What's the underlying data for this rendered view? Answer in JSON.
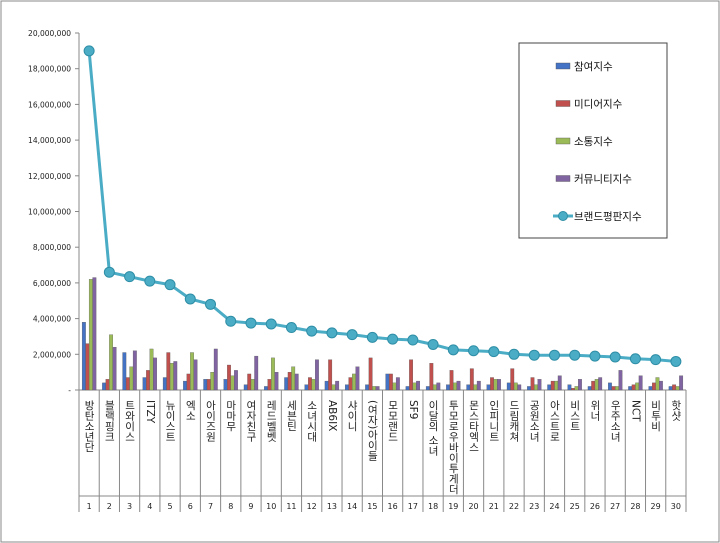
{
  "chart_data": {
    "type": "bar+line",
    "title": "",
    "xlabel": "",
    "ylabel": "",
    "ylim": [
      0,
      20000000
    ],
    "yticks": [
      "-",
      "2,000,000",
      "4,000,000",
      "6,000,000",
      "8,000,000",
      "10,000,000",
      "12,000,000",
      "14,000,000",
      "16,000,000",
      "18,000,000",
      "20,000,000"
    ],
    "categories": [
      "방탄소년단",
      "블랙핑크",
      "트와이스",
      "ITZY",
      "뉴이스트",
      "엑소",
      "아이즈원",
      "마마무",
      "여자친구",
      "레드벨벳",
      "세븐틴",
      "소녀시대",
      "AB6IX",
      "샤이니",
      "(여자)아이들",
      "모모랜드",
      "SF9",
      "이달의 소녀",
      "투모로우바이투게더",
      "몬스타엑스",
      "인피니트",
      "드림캐쳐",
      "공원소녀",
      "아스트로",
      "비스트",
      "위너",
      "우주소녀",
      "NCT",
      "비투비",
      "핫샷"
    ],
    "ranks": [
      "1",
      "2",
      "3",
      "4",
      "5",
      "6",
      "7",
      "8",
      "9",
      "10",
      "11",
      "12",
      "13",
      "14",
      "15",
      "16",
      "17",
      "18",
      "19",
      "20",
      "21",
      "22",
      "23",
      "24",
      "25",
      "26",
      "27",
      "28",
      "29",
      "30"
    ],
    "grid": false,
    "legend_position": "top-right",
    "series": [
      {
        "name": "참여지수",
        "kind": "bar",
        "color": "#4472c4",
        "values": [
          3800000,
          400000,
          2100000,
          700000,
          700000,
          500000,
          600000,
          600000,
          300000,
          200000,
          700000,
          300000,
          500000,
          300000,
          300000,
          900000,
          200000,
          200000,
          300000,
          300000,
          300000,
          400000,
          200000,
          300000,
          300000,
          200000,
          400000,
          200000,
          200000,
          200000
        ]
      },
      {
        "name": "미디어지수",
        "kind": "bar",
        "color": "#c0504d",
        "values": [
          2600000,
          600000,
          700000,
          1100000,
          2100000,
          900000,
          600000,
          1400000,
          900000,
          600000,
          1000000,
          700000,
          1700000,
          700000,
          1800000,
          900000,
          1700000,
          1500000,
          1100000,
          1200000,
          700000,
          1200000,
          700000,
          500000,
          100000,
          500000,
          200000,
          300000,
          400000,
          300000
        ]
      },
      {
        "name": "소통지수",
        "kind": "bar",
        "color": "#9bbb59",
        "values": [
          6200000,
          3100000,
          1300000,
          2300000,
          1500000,
          2100000,
          1000000,
          800000,
          600000,
          1800000,
          1300000,
          600000,
          300000,
          900000,
          200000,
          400000,
          400000,
          300000,
          400000,
          300000,
          600000,
          400000,
          300000,
          500000,
          200000,
          600000,
          200000,
          400000,
          700000,
          200000
        ]
      },
      {
        "name": "커뮤니티지수",
        "kind": "bar",
        "color": "#8064a2",
        "values": [
          6300000,
          2400000,
          2200000,
          1800000,
          1600000,
          1700000,
          2300000,
          1100000,
          1900000,
          1000000,
          900000,
          1700000,
          500000,
          1300000,
          200000,
          700000,
          500000,
          400000,
          500000,
          500000,
          600000,
          300000,
          600000,
          800000,
          600000,
          700000,
          1100000,
          800000,
          500000,
          800000
        ]
      },
      {
        "name": "브랜드평판지수",
        "kind": "line",
        "color": "#4bacc6",
        "values": [
          19000000,
          6600000,
          6350000,
          6100000,
          5900000,
          5100000,
          4800000,
          3850000,
          3750000,
          3700000,
          3500000,
          3300000,
          3200000,
          3100000,
          2950000,
          2850000,
          2800000,
          2550000,
          2250000,
          2200000,
          2150000,
          2000000,
          1950000,
          1950000,
          1950000,
          1900000,
          1850000,
          1750000,
          1700000,
          1600000
        ]
      }
    ]
  }
}
